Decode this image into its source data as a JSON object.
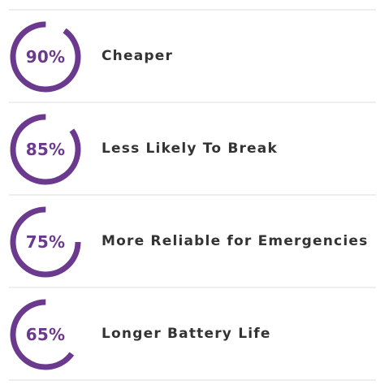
{
  "colors": {
    "accent": "#6b3a8f",
    "label_text": "#333333",
    "divider": "#eeeeee"
  },
  "chart_data": {
    "type": "progress-rings",
    "items": [
      {
        "percent_label": "90%",
        "value": 90,
        "label": "Cheaper"
      },
      {
        "percent_label": "85%",
        "value": 85,
        "label": "Less Likely To Break"
      },
      {
        "percent_label": "75%",
        "value": 75,
        "label": "More Reliable for Emergencies"
      },
      {
        "percent_label": "65%",
        "value": 65,
        "label": "Longer Battery Life"
      }
    ]
  }
}
